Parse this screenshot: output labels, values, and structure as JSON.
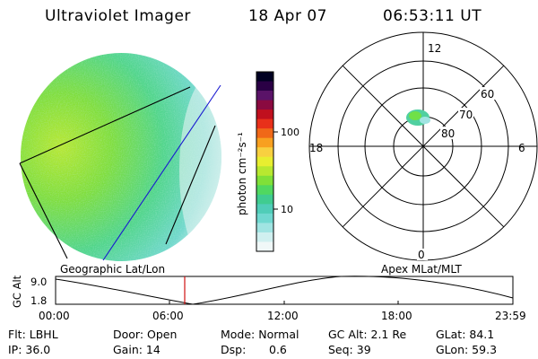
{
  "header": {
    "instrument": "Ultraviolet Imager",
    "date": "18 Apr 07",
    "time": "06:53:11 UT"
  },
  "colorbar": {
    "unit_label": "photon cm⁻²s⁻¹",
    "ticks": [
      "100",
      "10"
    ],
    "colors": [
      "#000022",
      "#2a0045",
      "#5a1368",
      "#8a0a40",
      "#c0101e",
      "#e8301a",
      "#f06818",
      "#f8a020",
      "#f8d040",
      "#e8ee30",
      "#b8e830",
      "#80e038",
      "#50d860",
      "#40cc90",
      "#50cdb8",
      "#70d8d0",
      "#a0e4e2",
      "#d0f0f0",
      "#f0f8f8"
    ]
  },
  "polar": {
    "mlt_labels": {
      "top": "12",
      "left": "18",
      "right": "6",
      "bottom": "0"
    },
    "lat_labels": [
      "60",
      "70",
      "80"
    ]
  },
  "timeline": {
    "left_title": "Geographic Lat/Lon",
    "right_title": "Apex  MLat/MLT",
    "ylabel": "GC Alt",
    "y_ticks": [
      "9.0",
      "1.8"
    ],
    "x_ticks": [
      "00:00",
      "06:00",
      "12:00",
      "18:00",
      "23:59"
    ]
  },
  "info": {
    "flt": "Flt: LBHL",
    "ip": "IP: 36.0",
    "door": "Door: Open",
    "gain": "Gain: 14",
    "mode": "Mode: Normal",
    "dsp_label": "Dsp:",
    "dsp_value": "0.6",
    "gc_alt": "GC Alt: 2.1 Re",
    "seq": "Seq: 39",
    "glat": "GLat:  84.1",
    "glon": "GLon:  59.3"
  }
}
